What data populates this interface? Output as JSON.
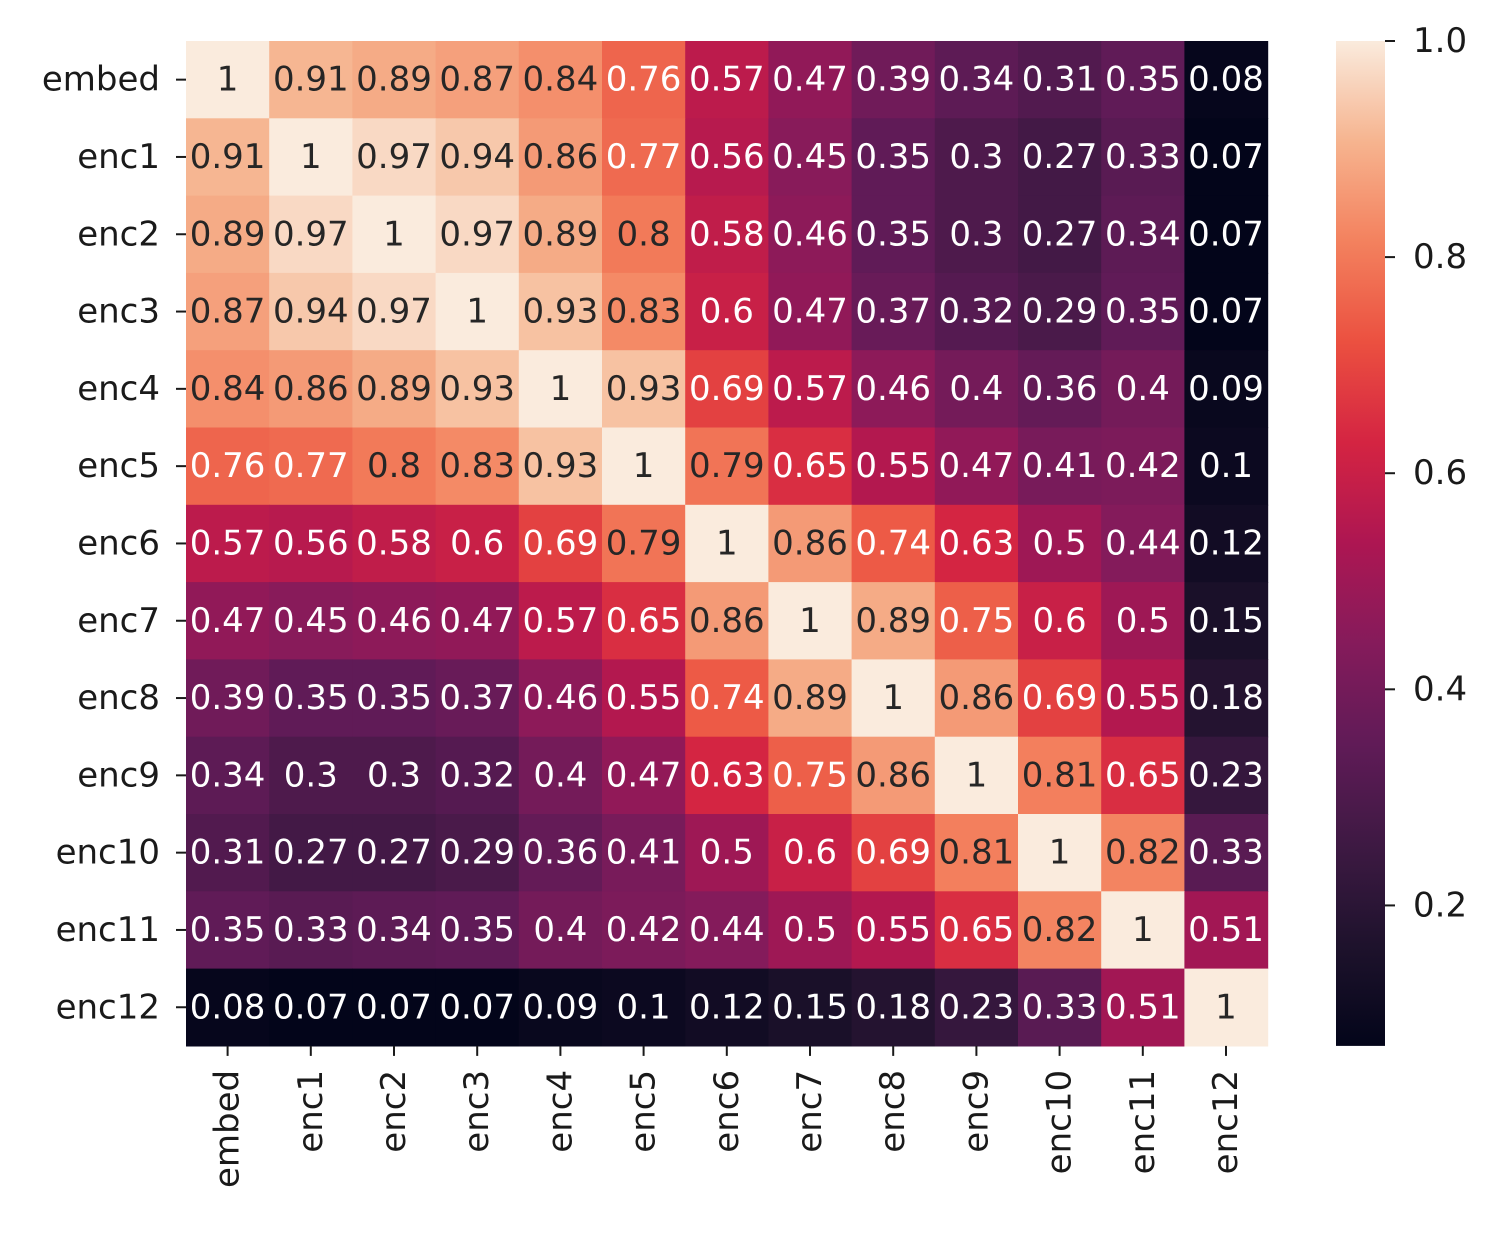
{
  "chart_data": {
    "type": "heatmap",
    "title": "",
    "xlabel": "",
    "ylabel": "",
    "labels": [
      "embed",
      "enc1",
      "enc2",
      "enc3",
      "enc4",
      "enc5",
      "enc6",
      "enc7",
      "enc8",
      "enc9",
      "enc10",
      "enc11",
      "enc12"
    ],
    "values": [
      [
        1,
        0.91,
        0.89,
        0.87,
        0.84,
        0.76,
        0.57,
        0.47,
        0.39,
        0.34,
        0.31,
        0.35,
        0.08
      ],
      [
        0.91,
        1,
        0.97,
        0.94,
        0.86,
        0.77,
        0.56,
        0.45,
        0.35,
        0.3,
        0.27,
        0.33,
        0.07
      ],
      [
        0.89,
        0.97,
        1,
        0.97,
        0.89,
        0.8,
        0.58,
        0.46,
        0.35,
        0.3,
        0.27,
        0.34,
        0.07
      ],
      [
        0.87,
        0.94,
        0.97,
        1,
        0.93,
        0.83,
        0.6,
        0.47,
        0.37,
        0.32,
        0.29,
        0.35,
        0.07
      ],
      [
        0.84,
        0.86,
        0.89,
        0.93,
        1,
        0.93,
        0.69,
        0.57,
        0.46,
        0.4,
        0.36,
        0.4,
        0.09
      ],
      [
        0.76,
        0.77,
        0.8,
        0.83,
        0.93,
        1,
        0.79,
        0.65,
        0.55,
        0.47,
        0.41,
        0.42,
        0.1
      ],
      [
        0.57,
        0.56,
        0.58,
        0.6,
        0.69,
        0.79,
        1,
        0.86,
        0.74,
        0.63,
        0.5,
        0.44,
        0.12
      ],
      [
        0.47,
        0.45,
        0.46,
        0.47,
        0.57,
        0.65,
        0.86,
        1,
        0.89,
        0.75,
        0.6,
        0.5,
        0.15
      ],
      [
        0.39,
        0.35,
        0.35,
        0.37,
        0.46,
        0.55,
        0.74,
        0.89,
        1,
        0.86,
        0.69,
        0.55,
        0.18
      ],
      [
        0.34,
        0.3,
        0.3,
        0.32,
        0.4,
        0.47,
        0.63,
        0.75,
        0.86,
        1,
        0.81,
        0.65,
        0.23
      ],
      [
        0.31,
        0.27,
        0.27,
        0.29,
        0.36,
        0.41,
        0.5,
        0.6,
        0.69,
        0.81,
        1,
        0.82,
        0.33
      ],
      [
        0.35,
        0.33,
        0.34,
        0.35,
        0.4,
        0.42,
        0.44,
        0.5,
        0.55,
        0.65,
        0.82,
        1,
        0.51
      ],
      [
        0.08,
        0.07,
        0.07,
        0.07,
        0.09,
        0.1,
        0.12,
        0.15,
        0.18,
        0.23,
        0.33,
        0.51,
        1
      ]
    ],
    "colorbar": {
      "min": 0.07,
      "max": 1.0,
      "ticks": [
        0.2,
        0.4,
        0.6,
        0.8,
        1.0
      ],
      "tick_labels": [
        "0.2",
        "0.4",
        "0.6",
        "0.8",
        "1.0"
      ]
    },
    "colormap": "rocket",
    "grid": false,
    "legend": "colorbar-right"
  }
}
